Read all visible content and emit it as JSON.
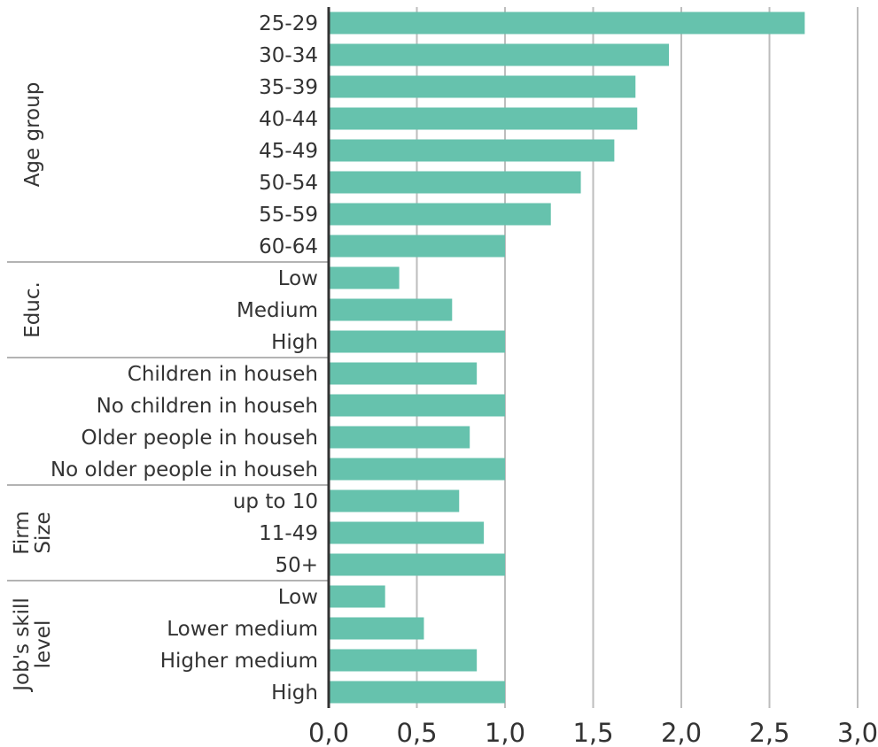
{
  "chart_data": {
    "type": "bar",
    "orientation": "horizontal",
    "title": "",
    "xlabel": "",
    "ylabel": "",
    "xlim": [
      0,
      3
    ],
    "x_ticks": [
      "0,0",
      "0,5",
      "1,0",
      "1,5",
      "2,0",
      "2,5",
      "3,0"
    ],
    "x_tick_values": [
      0,
      0.5,
      1,
      1.5,
      2,
      2.5,
      3
    ],
    "grid": "vertical",
    "bar_color": "#66c2ad",
    "groups": [
      {
        "name": "Age group",
        "categories": [
          "25-29",
          "30-34",
          "35-39",
          "40-44",
          "45-49",
          "50-54",
          "55-59",
          "60-64"
        ],
        "values": [
          2.7,
          1.93,
          1.74,
          1.75,
          1.62,
          1.43,
          1.26,
          1.0
        ]
      },
      {
        "name": "Educ.",
        "categories": [
          "Low",
          "Medium",
          "High"
        ],
        "values": [
          0.4,
          0.7,
          1.0
        ]
      },
      {
        "name": "",
        "categories": [
          "Children in househ",
          "No children in househ",
          "Older people in househ",
          "No older people in househ"
        ],
        "values": [
          0.84,
          1.0,
          0.8,
          1.0
        ]
      },
      {
        "name": "Firm Size",
        "name_lines": [
          "Firm",
          "Size"
        ],
        "categories": [
          "up to 10",
          "11-49",
          "50+"
        ],
        "values": [
          0.74,
          0.88,
          1.0
        ]
      },
      {
        "name": "Job's skill level",
        "name_lines": [
          "Job's skill",
          "level"
        ],
        "categories": [
          "Low",
          "Lower medium",
          "Higher medium",
          "High"
        ],
        "values": [
          0.32,
          0.54,
          0.84,
          1.0
        ]
      }
    ]
  }
}
